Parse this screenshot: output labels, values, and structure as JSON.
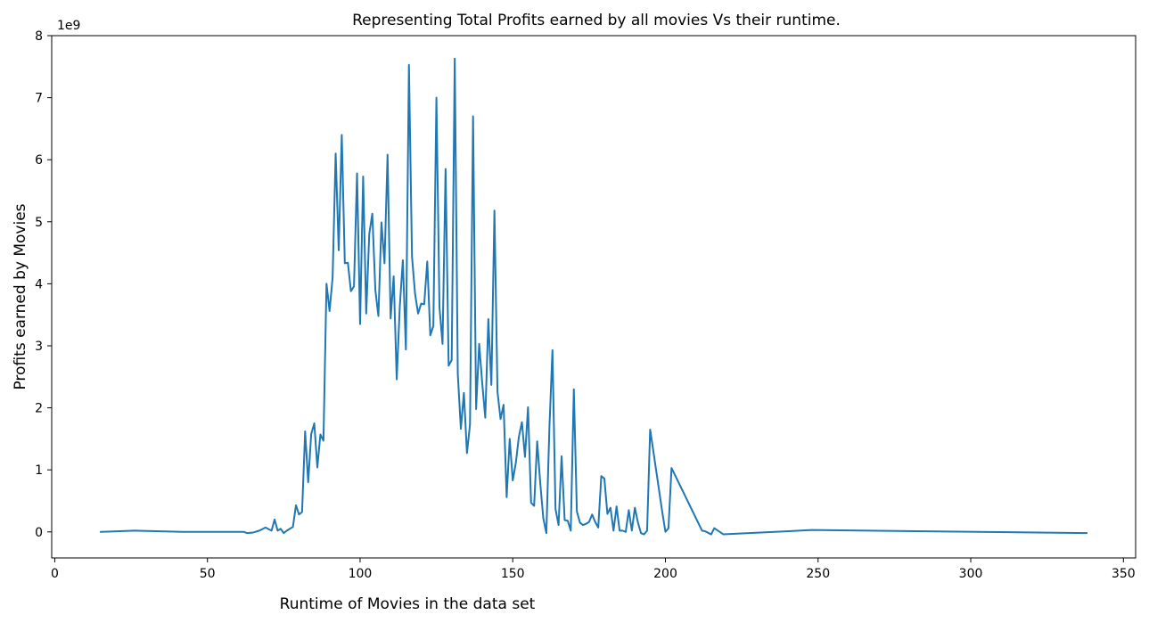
{
  "chart_data": {
    "type": "line",
    "title": "Representing Total Profits earned by all movies Vs their runtime.",
    "xlabel": "Runtime of Movies in the data set",
    "ylabel": "Profits earned by Movies",
    "y_offset_label": "1e9",
    "xlim": [
      -1,
      354
    ],
    "ylim": [
      -0.42,
      8.0
    ],
    "x_ticks": [
      0,
      50,
      100,
      150,
      200,
      250,
      300,
      350
    ],
    "y_ticks": [
      0,
      1,
      2,
      3,
      4,
      5,
      6,
      7,
      8
    ],
    "x_tick_labels": [
      "0",
      "50",
      "100",
      "150",
      "200",
      "250",
      "300",
      "350"
    ],
    "y_tick_labels": [
      "0",
      "1",
      "2",
      "3",
      "4",
      "5",
      "6",
      "7",
      "8"
    ],
    "grid": false,
    "series": [
      {
        "color": "#1f77b4",
        "x": [
          15,
          26,
          42,
          62,
          63,
          65,
          67,
          69,
          71,
          72,
          73,
          74,
          75,
          76,
          78,
          79,
          80,
          81,
          82,
          83,
          84,
          85,
          86,
          87,
          88,
          89,
          90,
          91,
          92,
          93,
          94,
          95,
          96,
          97,
          98,
          99,
          100,
          101,
          102,
          103,
          104,
          105,
          106,
          107,
          108,
          109,
          110,
          111,
          112,
          113,
          114,
          115,
          116,
          117,
          118,
          119,
          120,
          121,
          122,
          123,
          124,
          125,
          126,
          127,
          128,
          129,
          130,
          131,
          132,
          133,
          134,
          135,
          136,
          137,
          138,
          139,
          140,
          141,
          142,
          143,
          144,
          145,
          146,
          147,
          148,
          149,
          150,
          151,
          152,
          153,
          154,
          155,
          156,
          157,
          158,
          159,
          160,
          161,
          162,
          163,
          164,
          165,
          166,
          167,
          168,
          169,
          170,
          171,
          172,
          173,
          174,
          175,
          176,
          177,
          178,
          179,
          180,
          181,
          182,
          183,
          184,
          185,
          186,
          187,
          188,
          189,
          190,
          191,
          192,
          193,
          194,
          195,
          199,
          200,
          201,
          202,
          212,
          213,
          215,
          216,
          219,
          248,
          338
        ],
        "y": [
          0.0,
          0.02,
          0.0,
          0.0,
          -0.02,
          -0.01,
          0.02,
          0.07,
          0.02,
          0.2,
          0.02,
          0.05,
          -0.02,
          0.02,
          0.08,
          0.43,
          0.28,
          0.32,
          1.62,
          0.8,
          1.58,
          1.75,
          1.04,
          1.57,
          1.47,
          4.0,
          3.56,
          4.1,
          6.1,
          4.54,
          6.4,
          4.33,
          4.34,
          3.88,
          3.96,
          5.78,
          3.35,
          5.73,
          3.52,
          4.8,
          5.13,
          3.9,
          3.48,
          4.99,
          4.33,
          6.08,
          3.44,
          4.12,
          2.46,
          3.63,
          4.38,
          2.94,
          7.53,
          4.44,
          3.84,
          3.52,
          3.68,
          3.67,
          4.36,
          3.17,
          3.32,
          7.0,
          3.62,
          3.03,
          5.85,
          2.68,
          2.77,
          7.63,
          2.55,
          1.66,
          2.24,
          1.27,
          1.73,
          6.7,
          1.98,
          3.03,
          2.4,
          1.84,
          3.43,
          2.37,
          5.18,
          2.26,
          1.82,
          2.05,
          0.56,
          1.5,
          0.83,
          1.11,
          1.53,
          1.77,
          1.21,
          2.01,
          0.47,
          0.42,
          1.46,
          0.79,
          0.22,
          -0.02,
          1.67,
          2.93,
          0.37,
          0.11,
          1.22,
          0.19,
          0.18,
          0.02,
          2.3,
          0.33,
          0.15,
          0.11,
          0.13,
          0.16,
          0.28,
          0.16,
          0.07,
          0.9,
          0.86,
          0.29,
          0.39,
          0.02,
          0.41,
          0.02,
          0.02,
          0.0,
          0.35,
          0.02,
          0.39,
          0.15,
          -0.02,
          -0.04,
          0.02,
          1.65,
          0.31,
          0.0,
          0.06,
          1.03,
          0.02,
          0.01,
          -0.04,
          0.06,
          -0.04,
          0.03,
          -0.02
        ]
      }
    ]
  }
}
